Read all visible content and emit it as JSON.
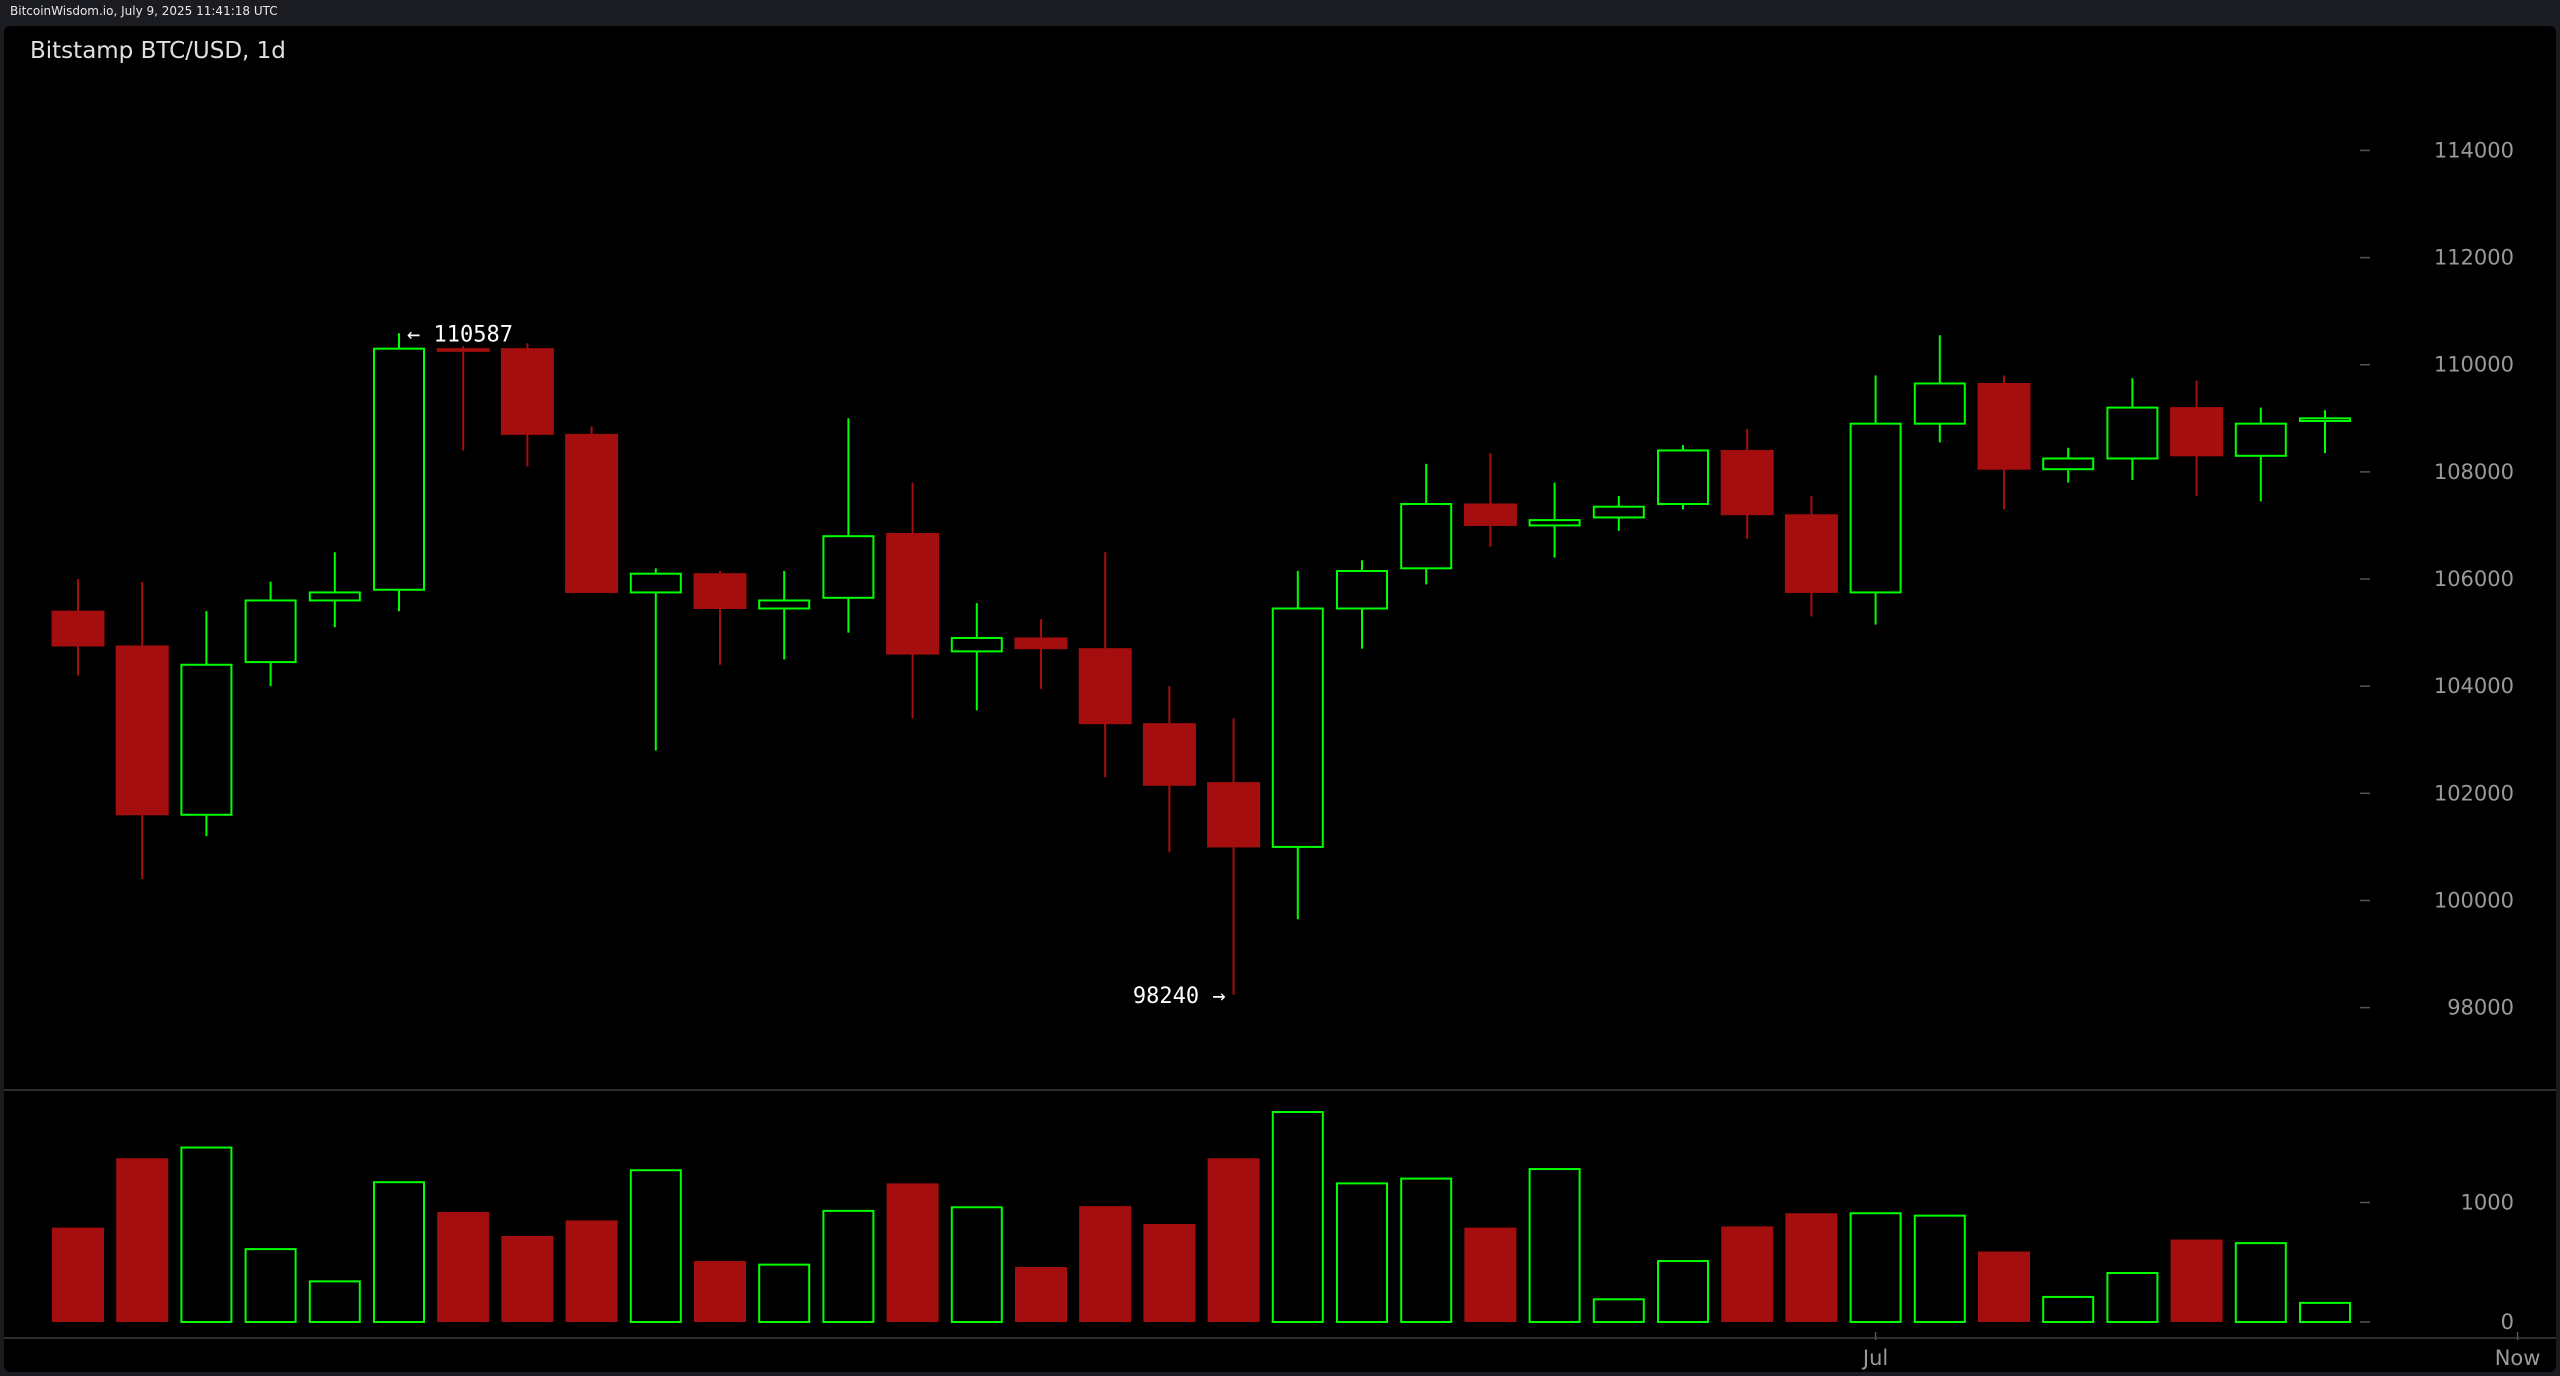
{
  "watermark": "BitcoinWisdom.io, July 9, 2025 11:41:18 UTC",
  "chart_title": "Bitstamp BTC/USD, 1d",
  "colors": {
    "up": "#00ff00",
    "down": "#a50e0e",
    "background": "#000000",
    "separator": "#3a3a3a",
    "grid_tick": "#555555",
    "label": "#9a9a9a"
  },
  "chart_data": {
    "type": "candlestick",
    "title": "Bitstamp BTC/USD, 1d",
    "price_axis": {
      "ylim": [
        96500,
        115800
      ],
      "ticks": [
        98000,
        100000,
        102000,
        104000,
        106000,
        108000,
        110000,
        112000,
        114000
      ]
    },
    "volume_axis": {
      "ticks": [
        0,
        1000
      ]
    },
    "x_axis": {
      "tick_labels": [
        {
          "label": "Jul",
          "candle_index": 28
        },
        {
          "label": "Now",
          "candle_index": 38
        }
      ]
    },
    "candles": [
      {
        "open": 105400,
        "high": 106000,
        "low": 104200,
        "close": 104750,
        "volume": 790
      },
      {
        "open": 104750,
        "high": 105950,
        "low": 100400,
        "close": 101600,
        "volume": 1370
      },
      {
        "open": 101600,
        "high": 105400,
        "low": 101200,
        "close": 104400,
        "volume": 1460
      },
      {
        "open": 104450,
        "high": 105950,
        "low": 104000,
        "close": 105600,
        "volume": 610
      },
      {
        "open": 105600,
        "high": 106500,
        "low": 105100,
        "close": 105750,
        "volume": 340
      },
      {
        "open": 105800,
        "high": 110587,
        "low": 105400,
        "close": 110300,
        "volume": 1170
      },
      {
        "open": 110300,
        "high": 110350,
        "low": 108400,
        "close": 110250,
        "volume": 920
      },
      {
        "open": 110300,
        "high": 110400,
        "low": 108100,
        "close": 108700,
        "volume": 720
      },
      {
        "open": 108700,
        "high": 108850,
        "low": 105750,
        "close": 105750,
        "volume": 850
      },
      {
        "open": 105750,
        "high": 106200,
        "low": 102800,
        "close": 106100,
        "volume": 1270
      },
      {
        "open": 106100,
        "high": 106150,
        "low": 104400,
        "close": 105450,
        "volume": 510
      },
      {
        "open": 105450,
        "high": 106150,
        "low": 104500,
        "close": 105600,
        "volume": 480
      },
      {
        "open": 105650,
        "high": 109000,
        "low": 105000,
        "close": 106800,
        "volume": 930
      },
      {
        "open": 106850,
        "high": 107800,
        "low": 103400,
        "close": 104600,
        "volume": 1160
      },
      {
        "open": 104650,
        "high": 105550,
        "low": 103550,
        "close": 104900,
        "volume": 960
      },
      {
        "open": 104900,
        "high": 105250,
        "low": 103950,
        "close": 104700,
        "volume": 460
      },
      {
        "open": 104700,
        "high": 106500,
        "low": 102300,
        "close": 103300,
        "volume": 970
      },
      {
        "open": 103300,
        "high": 104000,
        "low": 100900,
        "close": 102150,
        "volume": 820
      },
      {
        "open": 102200,
        "high": 103400,
        "low": 98240,
        "close": 101000,
        "volume": 1370
      },
      {
        "open": 101000,
        "high": 106150,
        "low": 99650,
        "close": 105450,
        "volume": 1770
      },
      {
        "open": 105450,
        "high": 106350,
        "low": 104700,
        "close": 106150,
        "volume": 1160
      },
      {
        "open": 106200,
        "high": 108150,
        "low": 105900,
        "close": 107400,
        "volume": 1200
      },
      {
        "open": 107400,
        "high": 108350,
        "low": 106600,
        "close": 107000,
        "volume": 790
      },
      {
        "open": 107000,
        "high": 107800,
        "low": 106400,
        "close": 107100,
        "volume": 1280
      },
      {
        "open": 107150,
        "high": 107550,
        "low": 106900,
        "close": 107350,
        "volume": 190
      },
      {
        "open": 107400,
        "high": 108500,
        "low": 107300,
        "close": 108400,
        "volume": 510
      },
      {
        "open": 108400,
        "high": 108800,
        "low": 106750,
        "close": 107200,
        "volume": 800
      },
      {
        "open": 107200,
        "high": 107550,
        "low": 105300,
        "close": 105750,
        "volume": 910
      },
      {
        "open": 105750,
        "high": 109800,
        "low": 105150,
        "close": 108900,
        "volume": 910
      },
      {
        "open": 108900,
        "high": 110550,
        "low": 108550,
        "close": 109650,
        "volume": 890
      },
      {
        "open": 109650,
        "high": 109800,
        "low": 107300,
        "close": 108050,
        "volume": 590
      },
      {
        "open": 108050,
        "high": 108450,
        "low": 107800,
        "close": 108250,
        "volume": 210
      },
      {
        "open": 108250,
        "high": 109750,
        "low": 107850,
        "close": 109200,
        "volume": 410
      },
      {
        "open": 109200,
        "high": 109700,
        "low": 107550,
        "close": 108300,
        "volume": 690
      },
      {
        "open": 108300,
        "high": 109200,
        "low": 107450,
        "close": 108900,
        "volume": 660
      },
      {
        "open": 108950,
        "high": 109150,
        "low": 108350,
        "close": 109000,
        "volume": 160
      }
    ],
    "annotations": {
      "high_label": "← 110587",
      "low_label": "98240 →"
    }
  }
}
